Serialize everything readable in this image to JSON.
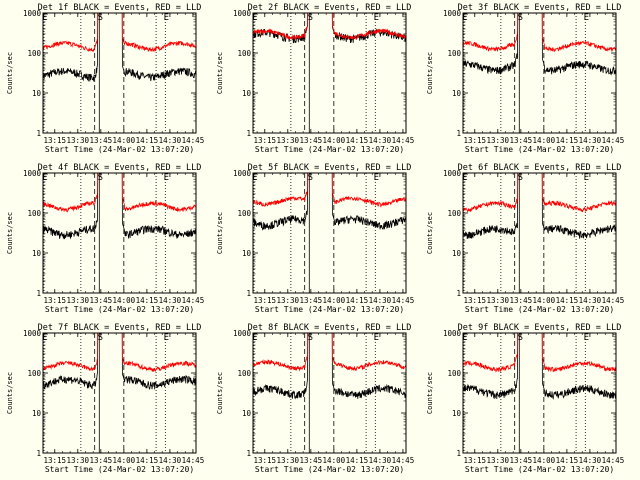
{
  "chart_data": {
    "type": "line",
    "layout": "3x3 grid",
    "y_scale": "log",
    "ylim": [
      1,
      1000
    ],
    "yticks": [
      "1",
      "10",
      "100",
      "1000"
    ],
    "ylabel": "Counts/sec",
    "xlabel": "Start Time (24-Mar-02 13:07:20)",
    "xlim": [
      "13:07:20",
      "14:47:00"
    ],
    "xticks": [
      "13:15",
      "13:30",
      "13:45",
      "14:00",
      "14:15",
      "14:30",
      "14:45"
    ],
    "series_legend": "BLACK = Events, RED = LLD",
    "colors": {
      "events": "#000000",
      "lld": "#ff0000"
    },
    "markers": [
      {
        "label": "E",
        "time": "13:08",
        "style": "dotted"
      },
      {
        "label": "",
        "time": "13:32",
        "style": "dotted"
      },
      {
        "label": "",
        "time": "13:41",
        "style": "dashed"
      },
      {
        "label": "S",
        "time": "13:44",
        "style": "solid"
      },
      {
        "label": "",
        "time": "14:00",
        "style": "dashed"
      },
      {
        "label": "",
        "time": "14:21",
        "style": "dotted"
      },
      {
        "label": "E",
        "time": "14:27",
        "style": "dotted"
      }
    ],
    "panels": [
      {
        "title": "Det 1f",
        "lld_level": 150,
        "events_level": 30
      },
      {
        "title": "Det 2f",
        "lld_level": 300,
        "events_level": 280
      },
      {
        "title": "Det 3f",
        "lld_level": 150,
        "events_level": 45
      },
      {
        "title": "Det 4f",
        "lld_level": 150,
        "events_level": 35
      },
      {
        "title": "Det 5f",
        "lld_level": 200,
        "events_level": 60
      },
      {
        "title": "Det 6f",
        "lld_level": 150,
        "events_level": 35
      },
      {
        "title": "Det 7f",
        "lld_level": 150,
        "events_level": 60
      },
      {
        "title": "Det 8f",
        "lld_level": 160,
        "events_level": 35
      },
      {
        "title": "Det 9f",
        "lld_level": 150,
        "events_level": 35
      }
    ]
  }
}
